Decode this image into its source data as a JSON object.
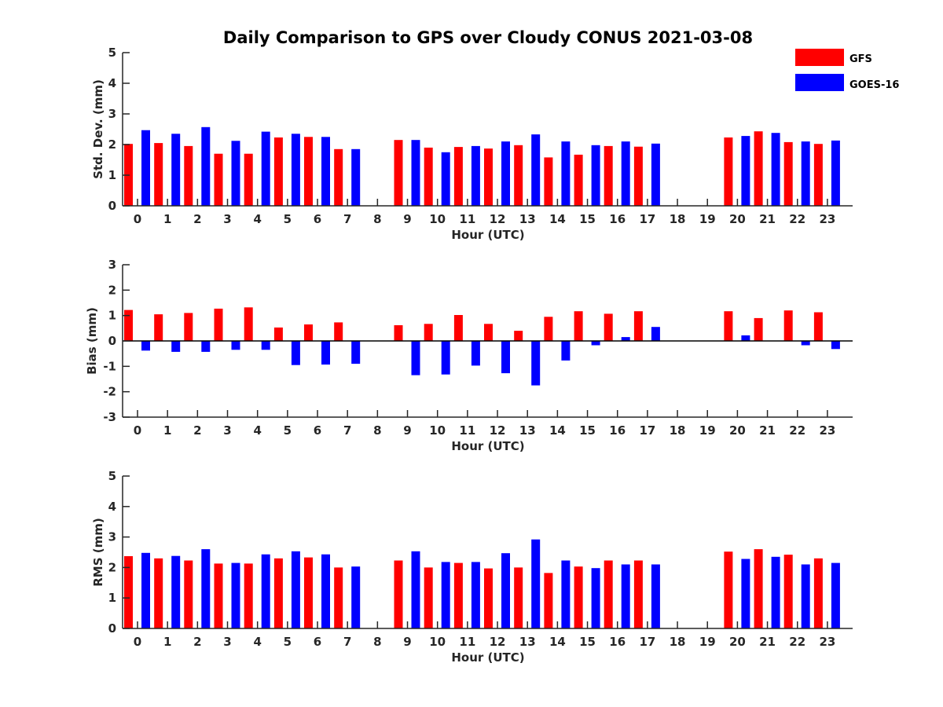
{
  "title": "Daily Comparison to GPS over Cloudy CONUS 2021-03-08",
  "colors": {
    "GFS": "#ff0000",
    "GOES-16": "#0000ff",
    "axis": "#262626"
  },
  "legend": {
    "position": "top-right",
    "entries": [
      "GFS",
      "GOES-16"
    ]
  },
  "chart_data": [
    {
      "type": "bar",
      "xlabel": "Hour (UTC)",
      "ylabel": "Std. Dev. (mm)",
      "ylim": [
        0,
        5
      ],
      "yticks": [
        0,
        1,
        2,
        3,
        4,
        5
      ],
      "categories": [
        "0",
        "1",
        "2",
        "3",
        "4",
        "5",
        "6",
        "7",
        "8",
        "9",
        "10",
        "11",
        "12",
        "13",
        "14",
        "15",
        "16",
        "17",
        "18",
        "19",
        "20",
        "21",
        "22",
        "23"
      ],
      "series": [
        {
          "name": "GFS",
          "values": [
            2.02,
            2.05,
            1.95,
            1.7,
            1.7,
            2.23,
            2.25,
            1.85,
            null,
            2.15,
            1.9,
            1.92,
            1.87,
            1.98,
            1.58,
            1.67,
            1.95,
            1.93,
            null,
            null,
            2.23,
            2.43,
            2.08,
            2.02
          ]
        },
        {
          "name": "GOES-16",
          "values": [
            2.47,
            2.35,
            2.57,
            2.12,
            2.42,
            2.35,
            2.25,
            1.85,
            null,
            2.15,
            1.75,
            1.95,
            2.1,
            2.33,
            2.1,
            1.98,
            2.1,
            2.03,
            null,
            null,
            2.28,
            2.38,
            2.1,
            2.13
          ]
        }
      ]
    },
    {
      "type": "bar",
      "xlabel": "Hour (UTC)",
      "ylabel": "Bias (mm)",
      "ylim": [
        -3,
        3
      ],
      "yticks": [
        -3,
        -2,
        -1,
        0,
        1,
        2,
        3
      ],
      "categories": [
        "0",
        "1",
        "2",
        "3",
        "4",
        "5",
        "6",
        "7",
        "8",
        "9",
        "10",
        "11",
        "12",
        "13",
        "14",
        "15",
        "16",
        "17",
        "18",
        "19",
        "20",
        "21",
        "22",
        "23"
      ],
      "series": [
        {
          "name": "GFS",
          "values": [
            1.22,
            1.05,
            1.1,
            1.27,
            1.32,
            0.53,
            0.65,
            0.73,
            null,
            0.62,
            0.67,
            1.02,
            0.67,
            0.4,
            0.95,
            1.17,
            1.07,
            1.17,
            null,
            null,
            1.17,
            0.9,
            1.2,
            1.13
          ]
        },
        {
          "name": "GOES-16",
          "values": [
            -0.38,
            -0.43,
            -0.43,
            -0.35,
            -0.35,
            -0.95,
            -0.93,
            -0.9,
            null,
            -1.35,
            -1.32,
            -0.97,
            -1.27,
            -1.75,
            -0.77,
            -0.17,
            0.15,
            0.55,
            null,
            null,
            0.22,
            null,
            -0.17,
            -0.32
          ]
        }
      ]
    },
    {
      "type": "bar",
      "xlabel": "Hour (UTC)",
      "ylabel": "RMS (mm)",
      "ylim": [
        0,
        5
      ],
      "yticks": [
        0,
        1,
        2,
        3,
        4,
        5
      ],
      "categories": [
        "0",
        "1",
        "2",
        "3",
        "4",
        "5",
        "6",
        "7",
        "8",
        "9",
        "10",
        "11",
        "12",
        "13",
        "14",
        "15",
        "16",
        "17",
        "18",
        "19",
        "20",
        "21",
        "22",
        "23"
      ],
      "series": [
        {
          "name": "GFS",
          "values": [
            2.37,
            2.3,
            2.23,
            2.13,
            2.13,
            2.3,
            2.33,
            2.0,
            null,
            2.23,
            2.0,
            2.15,
            1.97,
            2.0,
            1.82,
            2.03,
            2.23,
            2.23,
            null,
            null,
            2.52,
            2.6,
            2.42,
            2.3
          ]
        },
        {
          "name": "GOES-16",
          "values": [
            2.48,
            2.38,
            2.6,
            2.15,
            2.43,
            2.53,
            2.43,
            2.03,
            null,
            2.53,
            2.18,
            2.18,
            2.47,
            2.92,
            2.23,
            1.98,
            2.1,
            2.1,
            null,
            null,
            2.28,
            2.35,
            2.1,
            2.15
          ]
        }
      ]
    }
  ]
}
